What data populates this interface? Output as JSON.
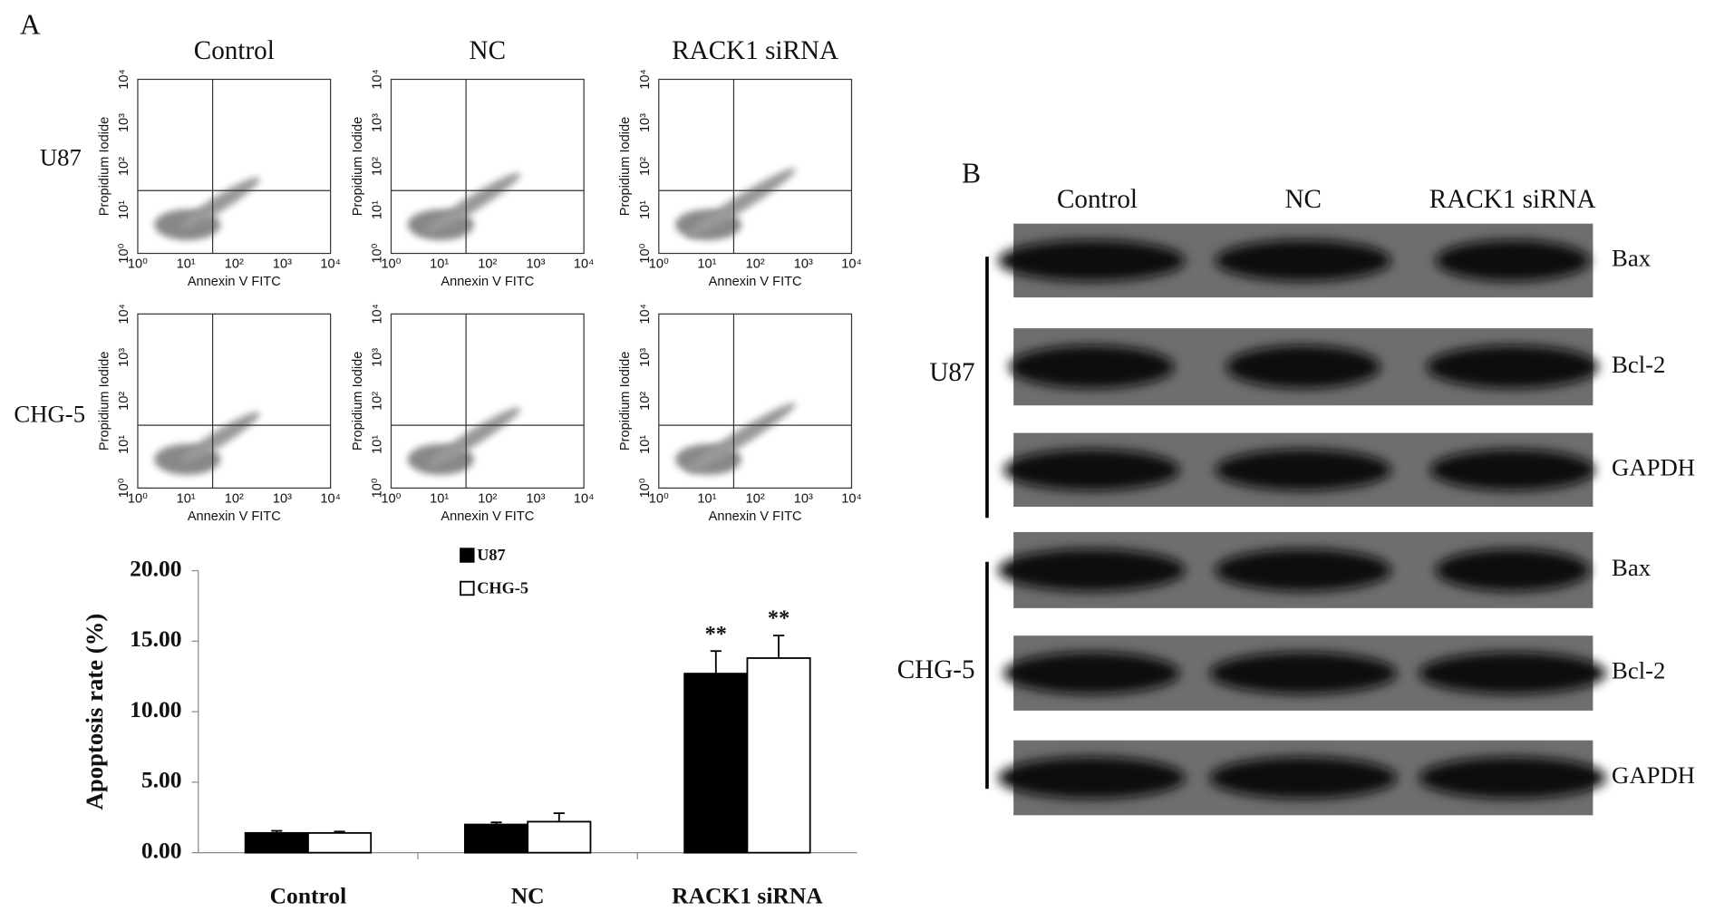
{
  "panel_a": {
    "label": "A",
    "flow": {
      "columns": [
        "Control",
        "NC",
        "RACK1 siRNA"
      ],
      "rows": [
        "U87",
        "CHG-5"
      ],
      "x_label": "Annexin V FITC",
      "y_label": "Propidium Iodide",
      "ticks": [
        "10⁰",
        "10¹",
        "10²",
        "10³",
        "10⁴"
      ]
    }
  },
  "chart_data": {
    "type": "bar",
    "y_label": "Apoptosis rate (%)",
    "categories": [
      "Control",
      "NC",
      "RACK1 siRNA"
    ],
    "series": [
      {
        "name": "U87",
        "color": "#000000",
        "values": [
          1.4,
          2.0,
          12.7
        ],
        "error": [
          0.15,
          0.15,
          1.6
        ],
        "annotations": [
          null,
          null,
          "**"
        ]
      },
      {
        "name": "CHG-5",
        "color": "#ffffff",
        "values": [
          1.4,
          2.2,
          13.8
        ],
        "error": [
          0.1,
          0.6,
          1.6
        ],
        "annotations": [
          null,
          null,
          "**"
        ]
      }
    ],
    "ylim": [
      0,
      20
    ],
    "yticks": [
      {
        "value": 0,
        "label": "0.00"
      },
      {
        "value": 5,
        "label": "5.00"
      },
      {
        "value": 10,
        "label": "10.00"
      },
      {
        "value": 15,
        "label": "15.00"
      },
      {
        "value": 20,
        "label": "20.00"
      }
    ]
  },
  "panel_b": {
    "label": "B",
    "columns": [
      "Control",
      "NC",
      "RACK1 siRNA"
    ],
    "groups": [
      {
        "name": "U87",
        "bands": [
          "Bax",
          "Bcl-2",
          "GAPDH"
        ]
      },
      {
        "name": "CHG-5",
        "bands": [
          "Bax",
          "Bcl-2",
          "GAPDH"
        ]
      }
    ]
  }
}
